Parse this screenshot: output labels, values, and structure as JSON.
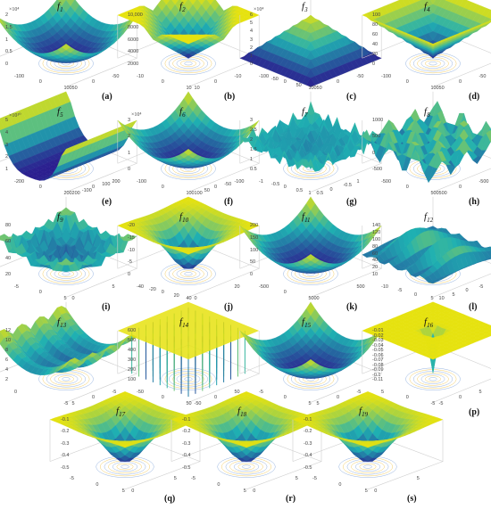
{
  "figure": {
    "panels": [
      {
        "id": "f1",
        "func": "f1",
        "label": "(a)",
        "shape": "bowl",
        "scale": "×10⁴",
        "zticks": [
          "2",
          "1.5",
          "1",
          "0.5",
          "0"
        ],
        "xticks": [
          "-100",
          "0",
          "100"
        ],
        "yticks": [
          "50",
          "0",
          "-50"
        ]
      },
      {
        "id": "f2",
        "func": "f2",
        "label": "(b)",
        "shape": "vee",
        "scale": "",
        "zticks": [
          "10,000",
          "8000",
          "6000",
          "4000",
          "2000"
        ],
        "xticks": [
          "-10",
          "0",
          "10"
        ],
        "yticks": [
          "10",
          "0",
          "-10"
        ]
      },
      {
        "id": "f3",
        "func": "f3",
        "label": "(c)",
        "shape": "tent",
        "scale": "×10⁴",
        "zticks": [
          "6",
          "5",
          "4",
          "3",
          "2",
          "1",
          "0"
        ],
        "xticks": [
          "-100",
          "-50",
          "0",
          "50",
          "100"
        ],
        "yticks": [
          "50",
          "0",
          "-50"
        ]
      },
      {
        "id": "f4",
        "func": "f4",
        "label": "(d)",
        "shape": "cone",
        "scale": "",
        "zticks": [
          "100",
          "80",
          "60",
          "40",
          "20",
          "0"
        ],
        "xticks": [
          "-100",
          "0",
          "100"
        ],
        "yticks": [
          "50",
          "0",
          "-50"
        ]
      },
      {
        "id": "f5",
        "func": "f5",
        "label": "(e)",
        "shape": "trough",
        "scale": "×10¹⁰",
        "zticks": [
          "5",
          "4",
          "3",
          "2",
          "1"
        ],
        "xticks": [
          "-200",
          "0",
          "200"
        ],
        "yticks": [
          "200",
          "-100",
          "0",
          "100",
          "200"
        ]
      },
      {
        "id": "f6",
        "func": "f6",
        "label": "(f)",
        "shape": "bowl",
        "scale": "×10⁴",
        "zticks": [
          "3",
          "2",
          "1",
          "0"
        ],
        "xticks": [
          "-100",
          "0",
          "100"
        ],
        "yticks": [
          "100",
          "50",
          "0",
          "-50",
          "-100"
        ]
      },
      {
        "id": "f7",
        "func": "f7",
        "label": "(g)",
        "shape": "noise",
        "scale": "",
        "zticks": [
          "3",
          "2.5",
          "2",
          "1.5",
          "1",
          "0.5"
        ],
        "xticks": [
          "-1",
          "-0.5",
          "0",
          "0.5",
          "1"
        ],
        "yticks": [
          "0.5",
          "0",
          "-0.5",
          "1"
        ]
      },
      {
        "id": "f8",
        "func": "f8",
        "label": "(h)",
        "shape": "egg",
        "scale": "",
        "zticks": [
          "1000",
          "500",
          "0",
          "-500"
        ],
        "xticks": [
          "-500",
          "0",
          "500"
        ],
        "yticks": [
          "500",
          "0",
          "-500"
        ]
      },
      {
        "id": "f9",
        "func": "f9",
        "label": "(i)",
        "shape": "spikes",
        "scale": "",
        "zticks": [
          "80",
          "60",
          "40",
          "20"
        ],
        "xticks": [
          "-5",
          "0",
          "5"
        ],
        "yticks": [
          "0",
          "5"
        ]
      },
      {
        "id": "f10",
        "func": "f10",
        "label": "(j)",
        "shape": "funnel",
        "scale": "",
        "zticks": [
          "-20",
          "-15",
          "-10",
          "-5",
          "0"
        ],
        "xticks": [
          "-40",
          "-20",
          "0",
          "20",
          "40"
        ],
        "yticks": [
          "0",
          "20"
        ]
      },
      {
        "id": "f11",
        "func": "f11",
        "label": "(k)",
        "shape": "bowl",
        "scale": "",
        "zticks": [
          "200",
          "150",
          "100",
          "50",
          "0"
        ],
        "xticks": [
          "-500",
          "0",
          "500"
        ],
        "yticks": [
          "0",
          "500"
        ]
      },
      {
        "id": "f12",
        "func": "f12",
        "label": "(l)",
        "shape": "ridges",
        "scale": "",
        "zticks": [
          "140",
          "120",
          "100",
          "80",
          "60",
          "40",
          "20",
          "10"
        ],
        "xticks": [
          "-10",
          "-5",
          "0",
          "5"
        ],
        "yticks": [
          "10",
          "5",
          "0",
          "-5"
        ]
      },
      {
        "id": "f13",
        "func": "f13",
        "label": "(m)",
        "shape": "valley",
        "scale": "",
        "zticks": [
          "12",
          "10",
          "8",
          "6",
          "4",
          "2"
        ],
        "xticks": [
          "0",
          "-5"
        ],
        "yticks": [
          "5",
          "0",
          "-5"
        ]
      },
      {
        "id": "f14",
        "func": "f14",
        "label": "(n)",
        "shape": "needles",
        "scale": "",
        "zticks": [
          "600",
          "500",
          "400",
          "300",
          "200",
          "100"
        ],
        "xticks": [
          "-50",
          "0",
          "50"
        ],
        "yticks": [
          "-50",
          "0",
          "50"
        ]
      },
      {
        "id": "f15",
        "func": "f15",
        "label": "(o)",
        "shape": "bowl",
        "scale": "",
        "zticks": [
          "",
          ""
        ],
        "xticks": [
          "-5",
          "0",
          "5"
        ],
        "yticks": [
          "5",
          "0",
          "-5"
        ]
      },
      {
        "id": "f16",
        "func": "f16",
        "label": "(p)",
        "shape": "plate",
        "scale": "",
        "zticks": [
          "-0.01",
          "-0.02",
          "-0.03",
          "-0.04",
          "-0.05",
          "-0.06",
          "-0.07",
          "-0.08",
          "-0.09",
          "-0.1",
          "-0.11"
        ],
        "xticks": [
          "5",
          "0",
          "-5"
        ],
        "yticks": [
          "-5",
          "0",
          "5"
        ]
      },
      {
        "id": "f17",
        "func": "f17",
        "label": "(q)",
        "shape": "funnel",
        "scale": "",
        "zticks": [
          "-0.1",
          "-0.2",
          "-0.3",
          "-0.4",
          "-0.5"
        ],
        "xticks": [
          "-5",
          "0",
          "5"
        ],
        "yticks": [
          "0",
          "5"
        ]
      },
      {
        "id": "f18",
        "func": "f18",
        "label": "(r)",
        "shape": "funnel",
        "scale": "",
        "zticks": [
          "-0.1",
          "-0.2",
          "-0.3",
          "-0.4",
          "-0.5"
        ],
        "xticks": [
          "-5",
          "0",
          "5"
        ],
        "yticks": [
          "0",
          "5"
        ]
      },
      {
        "id": "f19",
        "func": "f19",
        "label": "(s)",
        "shape": "funnel",
        "scale": "",
        "zticks": [
          "-0.1",
          "-0.2",
          "-0.3",
          "-0.4",
          "-0.5"
        ],
        "xticks": [
          "-5",
          "0",
          "5"
        ],
        "yticks": [
          "0",
          "5"
        ]
      }
    ],
    "colors": {
      "low": "#2b1e8f",
      "mid": "#1fb0b2",
      "high": "#e6e20f",
      "contour": "#7aa0d8",
      "axis": "#666666"
    }
  }
}
